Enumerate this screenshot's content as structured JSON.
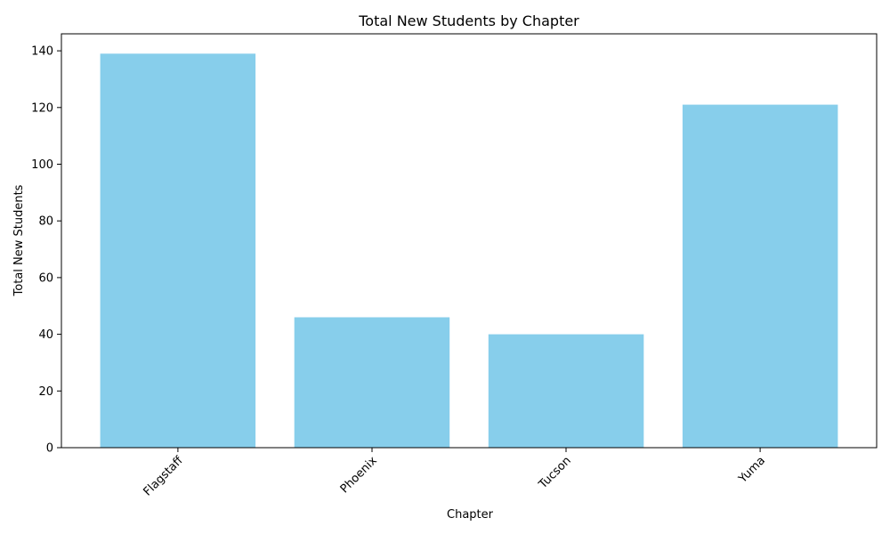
{
  "chart_data": {
    "type": "bar",
    "title": "Total New Students by Chapter",
    "xlabel": "Chapter",
    "ylabel": "Total New Students",
    "categories": [
      "Flagstaff",
      "Phoenix",
      "Tucson",
      "Yuma"
    ],
    "values": [
      139,
      46,
      40,
      121
    ],
    "ylim": [
      0,
      146
    ],
    "yticks": [
      0,
      20,
      40,
      60,
      80,
      100,
      120,
      140
    ],
    "x_tick_rotation_deg": 45,
    "grid": false,
    "legend": "none",
    "bar_color": "#87ceeb"
  }
}
